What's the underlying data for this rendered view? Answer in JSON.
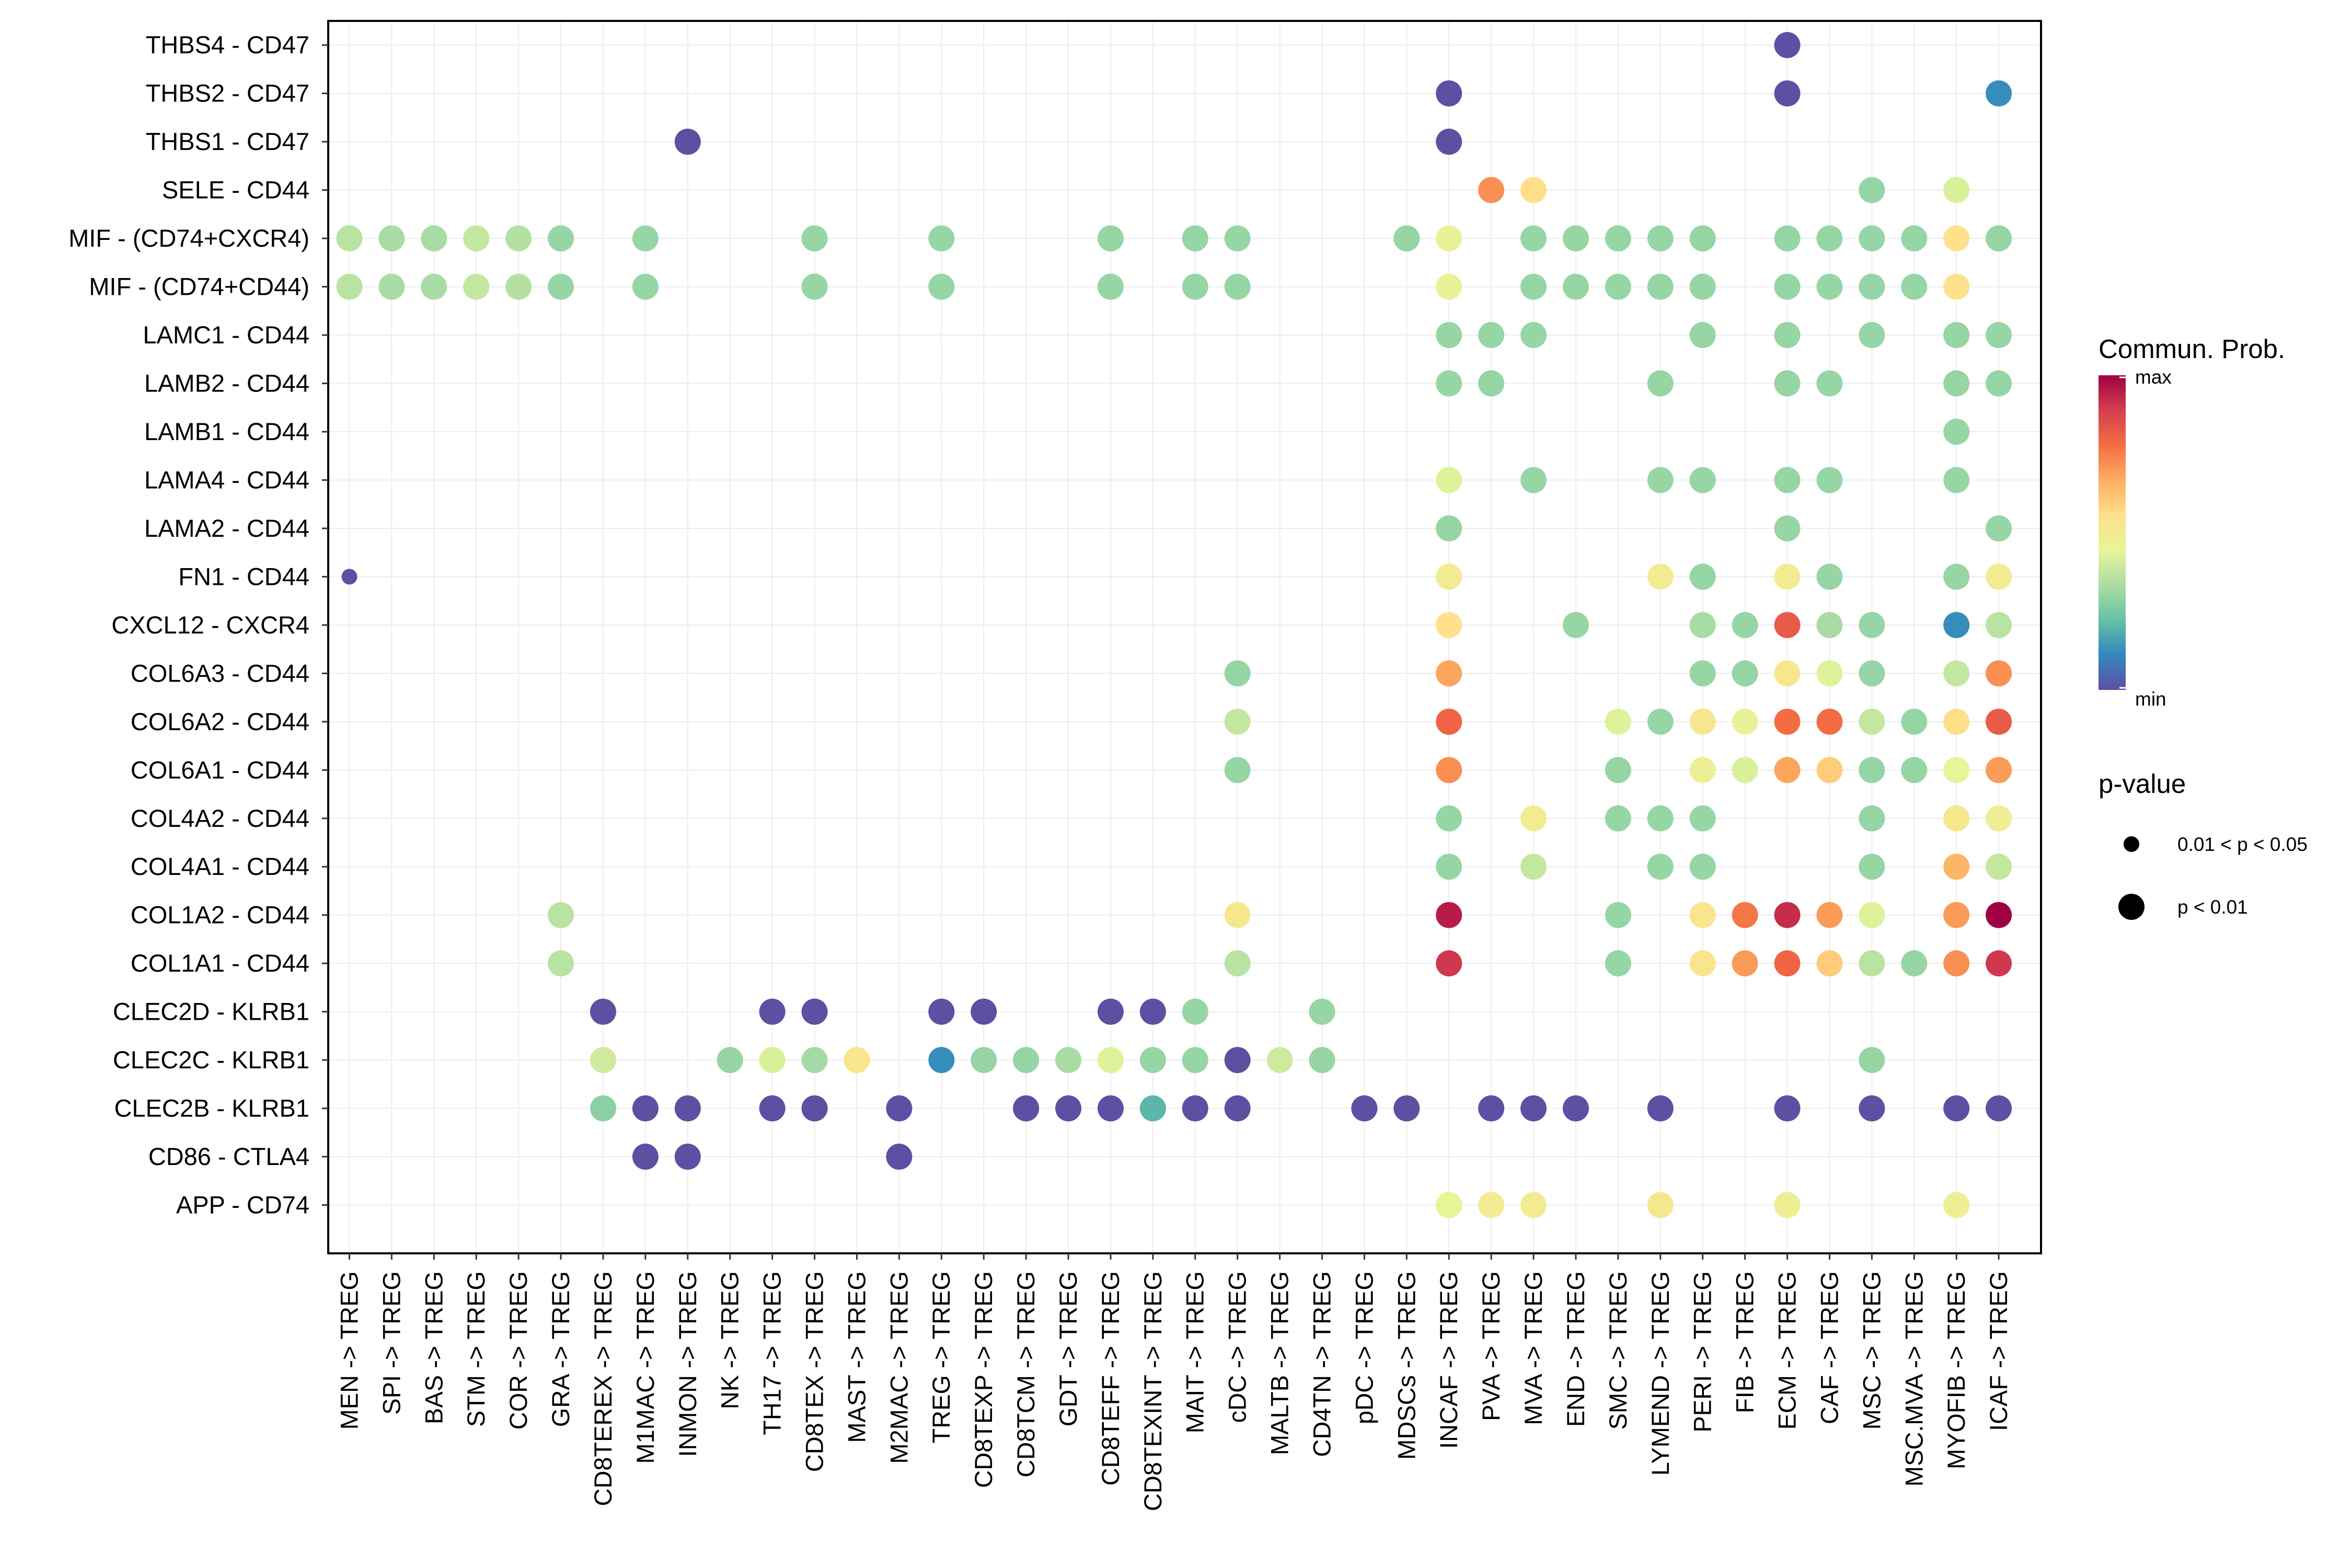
{
  "chart_data": {
    "type": "dotplot",
    "title": "",
    "xlabel": "",
    "ylabel": "",
    "x_categories": [
      "MEN -> TREG",
      "SPI -> TREG",
      "BAS -> TREG",
      "STM -> TREG",
      "COR -> TREG",
      "GRA -> TREG",
      "CD8TEREX -> TREG",
      "M1MAC -> TREG",
      "INMON -> TREG",
      "NK -> TREG",
      "TH17 -> TREG",
      "CD8TEX -> TREG",
      "MAST -> TREG",
      "M2MAC -> TREG",
      "TREG -> TREG",
      "CD8TEXP -> TREG",
      "CD8TCM -> TREG",
      "GDT -> TREG",
      "CD8TEFF -> TREG",
      "CD8TEXINT -> TREG",
      "MAIT -> TREG",
      "cDC -> TREG",
      "MALTB -> TREG",
      "CD4TN -> TREG",
      "pDC -> TREG",
      "MDSCs -> TREG",
      "INCAF -> TREG",
      "PVA -> TREG",
      "MVA -> TREG",
      "END -> TREG",
      "SMC -> TREG",
      "LYMEND -> TREG",
      "PERI -> TREG",
      "FIB -> TREG",
      "ECM -> TREG",
      "CAF -> TREG",
      "MSC -> TREG",
      "MSC.MVA -> TREG",
      "MYOFIB -> TREG",
      "ICAF -> TREG"
    ],
    "y_categories": [
      "THBS4 - CD47",
      "THBS2 - CD47",
      "THBS1 - CD47",
      "SELE - CD44",
      "MIF - (CD74+CXCR4)",
      "MIF - (CD74+CD44)",
      "LAMC1 - CD44",
      "LAMB2 - CD44",
      "LAMB1 - CD44",
      "LAMA4 - CD44",
      "LAMA2 - CD44",
      "FN1 - CD44",
      "CXCL12 - CXCR4",
      "COL6A3 - CD44",
      "COL6A2 - CD44",
      "COL6A1 - CD44",
      "COL4A2 - CD44",
      "COL4A1 - CD44",
      "COL1A2 - CD44",
      "COL1A1 - CD44",
      "CLEC2D - KLRB1",
      "CLEC2C - KLRB1",
      "CLEC2B - KLRB1",
      "CD86 - CTLA4",
      "APP - CD74"
    ],
    "points_note": "each point: [x_index, y_index, commun_prob_0_to_1, pvalue_class] ; pvalue_class 1 = p < 0.01, 0 = 0.01 < p < 0.05",
    "points": [
      [
        34,
        0,
        0.0,
        1
      ],
      [
        26,
        1,
        0.0,
        1
      ],
      [
        34,
        1,
        0.0,
        1
      ],
      [
        39,
        1,
        0.12,
        1
      ],
      [
        8,
        2,
        0.0,
        1
      ],
      [
        26,
        2,
        0.0,
        1
      ],
      [
        27,
        3,
        0.72,
        1
      ],
      [
        28,
        3,
        0.56,
        1
      ],
      [
        36,
        3,
        0.3,
        1
      ],
      [
        38,
        3,
        0.42,
        1
      ],
      [
        0,
        4,
        0.36,
        1
      ],
      [
        1,
        4,
        0.33,
        1
      ],
      [
        2,
        4,
        0.33,
        1
      ],
      [
        3,
        4,
        0.38,
        1
      ],
      [
        4,
        4,
        0.35,
        1
      ],
      [
        5,
        4,
        0.3,
        1
      ],
      [
        7,
        4,
        0.3,
        1
      ],
      [
        11,
        4,
        0.3,
        1
      ],
      [
        14,
        4,
        0.3,
        1
      ],
      [
        18,
        4,
        0.3,
        1
      ],
      [
        20,
        4,
        0.3,
        1
      ],
      [
        21,
        4,
        0.3,
        1
      ],
      [
        25,
        4,
        0.3,
        1
      ],
      [
        26,
        4,
        0.46,
        1
      ],
      [
        28,
        4,
        0.3,
        1
      ],
      [
        29,
        4,
        0.3,
        1
      ],
      [
        30,
        4,
        0.3,
        1
      ],
      [
        31,
        4,
        0.3,
        1
      ],
      [
        32,
        4,
        0.3,
        1
      ],
      [
        34,
        4,
        0.3,
        1
      ],
      [
        35,
        4,
        0.3,
        1
      ],
      [
        36,
        4,
        0.3,
        1
      ],
      [
        37,
        4,
        0.3,
        1
      ],
      [
        38,
        4,
        0.55,
        1
      ],
      [
        39,
        4,
        0.3,
        1
      ],
      [
        0,
        5,
        0.36,
        1
      ],
      [
        1,
        5,
        0.33,
        1
      ],
      [
        2,
        5,
        0.33,
        1
      ],
      [
        3,
        5,
        0.38,
        1
      ],
      [
        4,
        5,
        0.35,
        1
      ],
      [
        5,
        5,
        0.3,
        1
      ],
      [
        7,
        5,
        0.3,
        1
      ],
      [
        11,
        5,
        0.3,
        1
      ],
      [
        14,
        5,
        0.3,
        1
      ],
      [
        18,
        5,
        0.3,
        1
      ],
      [
        20,
        5,
        0.3,
        1
      ],
      [
        21,
        5,
        0.3,
        1
      ],
      [
        26,
        5,
        0.46,
        1
      ],
      [
        28,
        5,
        0.3,
        1
      ],
      [
        29,
        5,
        0.3,
        1
      ],
      [
        30,
        5,
        0.3,
        1
      ],
      [
        31,
        5,
        0.3,
        1
      ],
      [
        32,
        5,
        0.3,
        1
      ],
      [
        34,
        5,
        0.3,
        1
      ],
      [
        35,
        5,
        0.3,
        1
      ],
      [
        36,
        5,
        0.3,
        1
      ],
      [
        37,
        5,
        0.3,
        1
      ],
      [
        38,
        5,
        0.55,
        1
      ],
      [
        26,
        6,
        0.3,
        1
      ],
      [
        27,
        6,
        0.3,
        1
      ],
      [
        28,
        6,
        0.3,
        1
      ],
      [
        32,
        6,
        0.3,
        1
      ],
      [
        34,
        6,
        0.3,
        1
      ],
      [
        36,
        6,
        0.3,
        1
      ],
      [
        38,
        6,
        0.3,
        1
      ],
      [
        39,
        6,
        0.3,
        1
      ],
      [
        26,
        7,
        0.3,
        1
      ],
      [
        27,
        7,
        0.3,
        1
      ],
      [
        31,
        7,
        0.3,
        1
      ],
      [
        34,
        7,
        0.3,
        1
      ],
      [
        35,
        7,
        0.3,
        1
      ],
      [
        38,
        7,
        0.3,
        1
      ],
      [
        39,
        7,
        0.3,
        1
      ],
      [
        38,
        8,
        0.3,
        1
      ],
      [
        26,
        9,
        0.43,
        1
      ],
      [
        28,
        9,
        0.3,
        1
      ],
      [
        31,
        9,
        0.3,
        1
      ],
      [
        32,
        9,
        0.3,
        1
      ],
      [
        34,
        9,
        0.3,
        1
      ],
      [
        35,
        9,
        0.3,
        1
      ],
      [
        38,
        9,
        0.3,
        1
      ],
      [
        26,
        10,
        0.3,
        1
      ],
      [
        34,
        10,
        0.3,
        1
      ],
      [
        39,
        10,
        0.3,
        1
      ],
      [
        0,
        11,
        0.0,
        0
      ],
      [
        26,
        11,
        0.5,
        1
      ],
      [
        31,
        11,
        0.5,
        1
      ],
      [
        32,
        11,
        0.3,
        1
      ],
      [
        34,
        11,
        0.5,
        1
      ],
      [
        35,
        11,
        0.3,
        1
      ],
      [
        38,
        11,
        0.3,
        1
      ],
      [
        39,
        11,
        0.5,
        1
      ],
      [
        26,
        12,
        0.55,
        1
      ],
      [
        29,
        12,
        0.3,
        1
      ],
      [
        32,
        12,
        0.33,
        1
      ],
      [
        33,
        12,
        0.3,
        1
      ],
      [
        34,
        12,
        0.82,
        1
      ],
      [
        35,
        12,
        0.33,
        1
      ],
      [
        36,
        12,
        0.3,
        1
      ],
      [
        38,
        12,
        0.12,
        1
      ],
      [
        39,
        12,
        0.36,
        1
      ],
      [
        21,
        13,
        0.3,
        1
      ],
      [
        26,
        13,
        0.68,
        1
      ],
      [
        32,
        13,
        0.3,
        1
      ],
      [
        33,
        13,
        0.3,
        1
      ],
      [
        34,
        13,
        0.52,
        1
      ],
      [
        35,
        13,
        0.43,
        1
      ],
      [
        36,
        13,
        0.3,
        1
      ],
      [
        38,
        13,
        0.38,
        1
      ],
      [
        39,
        13,
        0.72,
        1
      ],
      [
        21,
        14,
        0.38,
        1
      ],
      [
        26,
        14,
        0.8,
        1
      ],
      [
        30,
        14,
        0.43,
        1
      ],
      [
        31,
        14,
        0.3,
        1
      ],
      [
        32,
        14,
        0.52,
        1
      ],
      [
        33,
        14,
        0.46,
        1
      ],
      [
        34,
        14,
        0.78,
        1
      ],
      [
        35,
        14,
        0.78,
        1
      ],
      [
        36,
        14,
        0.38,
        1
      ],
      [
        37,
        14,
        0.3,
        1
      ],
      [
        38,
        14,
        0.56,
        1
      ],
      [
        39,
        14,
        0.82,
        1
      ],
      [
        21,
        15,
        0.3,
        1
      ],
      [
        26,
        15,
        0.72,
        1
      ],
      [
        30,
        15,
        0.3,
        1
      ],
      [
        32,
        15,
        0.48,
        1
      ],
      [
        33,
        15,
        0.42,
        1
      ],
      [
        34,
        15,
        0.68,
        1
      ],
      [
        35,
        15,
        0.6,
        1
      ],
      [
        36,
        15,
        0.3,
        1
      ],
      [
        37,
        15,
        0.3,
        1
      ],
      [
        38,
        15,
        0.45,
        1
      ],
      [
        39,
        15,
        0.7,
        1
      ],
      [
        26,
        16,
        0.3,
        1
      ],
      [
        28,
        16,
        0.5,
        1
      ],
      [
        30,
        16,
        0.3,
        1
      ],
      [
        31,
        16,
        0.3,
        1
      ],
      [
        32,
        16,
        0.3,
        1
      ],
      [
        36,
        16,
        0.3,
        1
      ],
      [
        38,
        16,
        0.52,
        1
      ],
      [
        39,
        16,
        0.48,
        1
      ],
      [
        26,
        17,
        0.3,
        1
      ],
      [
        28,
        17,
        0.38,
        1
      ],
      [
        31,
        17,
        0.3,
        1
      ],
      [
        32,
        17,
        0.3,
        1
      ],
      [
        36,
        17,
        0.3,
        1
      ],
      [
        38,
        17,
        0.65,
        1
      ],
      [
        39,
        17,
        0.38,
        1
      ],
      [
        5,
        18,
        0.36,
        1
      ],
      [
        21,
        18,
        0.52,
        1
      ],
      [
        26,
        18,
        0.95,
        1
      ],
      [
        30,
        18,
        0.3,
        1
      ],
      [
        32,
        18,
        0.53,
        1
      ],
      [
        33,
        18,
        0.76,
        1
      ],
      [
        34,
        18,
        0.92,
        1
      ],
      [
        35,
        18,
        0.7,
        1
      ],
      [
        36,
        18,
        0.43,
        1
      ],
      [
        38,
        18,
        0.7,
        1
      ],
      [
        39,
        18,
        1.0,
        1
      ],
      [
        5,
        19,
        0.36,
        1
      ],
      [
        21,
        19,
        0.36,
        1
      ],
      [
        26,
        19,
        0.9,
        1
      ],
      [
        30,
        19,
        0.3,
        1
      ],
      [
        32,
        19,
        0.53,
        1
      ],
      [
        33,
        19,
        0.7,
        1
      ],
      [
        34,
        19,
        0.8,
        1
      ],
      [
        35,
        19,
        0.6,
        1
      ],
      [
        36,
        19,
        0.36,
        1
      ],
      [
        37,
        19,
        0.3,
        1
      ],
      [
        38,
        19,
        0.72,
        1
      ],
      [
        39,
        19,
        0.9,
        1
      ],
      [
        6,
        20,
        0.0,
        1
      ],
      [
        10,
        20,
        0.0,
        1
      ],
      [
        11,
        20,
        0.0,
        1
      ],
      [
        14,
        20,
        0.0,
        1
      ],
      [
        15,
        20,
        0.0,
        1
      ],
      [
        18,
        20,
        0.0,
        1
      ],
      [
        19,
        20,
        0.0,
        1
      ],
      [
        20,
        20,
        0.3,
        1
      ],
      [
        23,
        20,
        0.3,
        1
      ],
      [
        6,
        21,
        0.4,
        1
      ],
      [
        9,
        21,
        0.3,
        1
      ],
      [
        10,
        21,
        0.42,
        1
      ],
      [
        11,
        21,
        0.32,
        1
      ],
      [
        12,
        21,
        0.53,
        1
      ],
      [
        14,
        21,
        0.12,
        1
      ],
      [
        15,
        21,
        0.3,
        1
      ],
      [
        16,
        21,
        0.3,
        1
      ],
      [
        17,
        21,
        0.33,
        1
      ],
      [
        18,
        21,
        0.43,
        1
      ],
      [
        19,
        21,
        0.3,
        1
      ],
      [
        20,
        21,
        0.3,
        1
      ],
      [
        21,
        21,
        0.0,
        1
      ],
      [
        22,
        21,
        0.4,
        1
      ],
      [
        23,
        21,
        0.3,
        1
      ],
      [
        36,
        21,
        0.3,
        1
      ],
      [
        6,
        22,
        0.28,
        1
      ],
      [
        7,
        22,
        0.0,
        1
      ],
      [
        8,
        22,
        0.0,
        1
      ],
      [
        10,
        22,
        0.0,
        1
      ],
      [
        11,
        22,
        0.0,
        1
      ],
      [
        13,
        22,
        0.0,
        1
      ],
      [
        16,
        22,
        0.0,
        1
      ],
      [
        17,
        22,
        0.0,
        1
      ],
      [
        18,
        22,
        0.0,
        1
      ],
      [
        19,
        22,
        0.2,
        1
      ],
      [
        20,
        22,
        0.0,
        1
      ],
      [
        21,
        22,
        0.0,
        1
      ],
      [
        24,
        22,
        0.0,
        1
      ],
      [
        25,
        22,
        0.0,
        1
      ],
      [
        27,
        22,
        0.0,
        1
      ],
      [
        28,
        22,
        0.0,
        1
      ],
      [
        29,
        22,
        0.0,
        1
      ],
      [
        31,
        22,
        0.0,
        1
      ],
      [
        34,
        22,
        0.0,
        1
      ],
      [
        36,
        22,
        0.0,
        1
      ],
      [
        38,
        22,
        0.0,
        1
      ],
      [
        39,
        22,
        0.0,
        1
      ],
      [
        7,
        23,
        0.0,
        1
      ],
      [
        8,
        23,
        0.0,
        1
      ],
      [
        13,
        23,
        0.0,
        1
      ],
      [
        26,
        24,
        0.45,
        1
      ],
      [
        27,
        24,
        0.5,
        1
      ],
      [
        28,
        24,
        0.5,
        1
      ],
      [
        31,
        24,
        0.52,
        1
      ],
      [
        34,
        24,
        0.48,
        1
      ],
      [
        38,
        24,
        0.48,
        1
      ]
    ],
    "legend": {
      "color_title": "Commun. Prob.",
      "color_max_label": "max",
      "color_min_label": "min",
      "size_title": "p-value",
      "size_labels": [
        "0.01 < p < 0.05",
        "p < 0.01"
      ]
    },
    "colorscale": [
      "#5e4fa2",
      "#3288bd",
      "#66c2a5",
      "#abdda4",
      "#e6f598",
      "#fee08b",
      "#fdae61",
      "#f46d43",
      "#d53e4f",
      "#9e0142"
    ]
  }
}
